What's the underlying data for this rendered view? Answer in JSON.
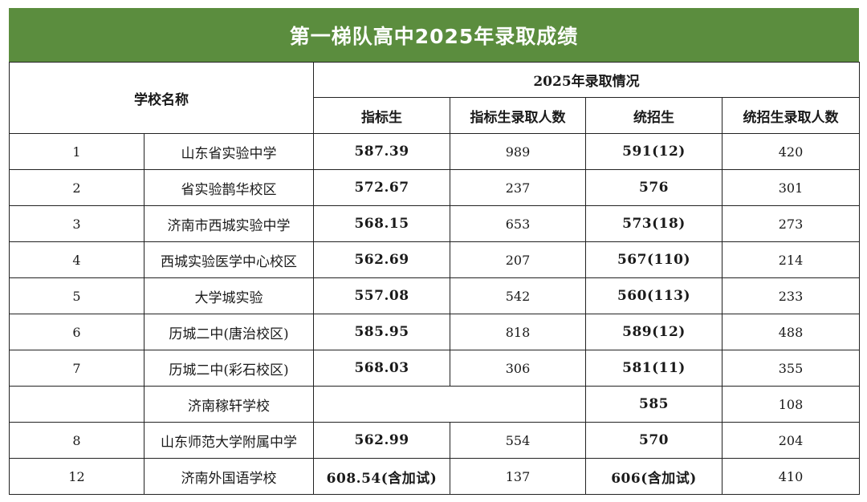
{
  "title": "第一梯队高中2025年录取成绩",
  "headers": {
    "school_name": "学校名称",
    "group": "2025年录取情况",
    "columns": [
      "指标生",
      "指标生录取人数",
      "统招生",
      "统招生录取人数"
    ]
  },
  "rows": [
    {
      "no": "1",
      "school": "山东省实验中学",
      "zb": "587.39",
      "zb_count": "989",
      "tz": "591(12)",
      "tz_count": "420"
    },
    {
      "no": "2",
      "school": "省实验鹊华校区",
      "zb": "572.67",
      "zb_count": "237",
      "tz": "576",
      "tz_count": "301"
    },
    {
      "no": "3",
      "school": "济南市西城实验中学",
      "zb": "568.15",
      "zb_count": "653",
      "tz": "573(18)",
      "tz_count": "273"
    },
    {
      "no": "4",
      "school": "西城实验医学中心校区",
      "zb": "562.69",
      "zb_count": "207",
      "tz": "567(110)",
      "tz_count": "214"
    },
    {
      "no": "5",
      "school": "大学城实验",
      "zb": "557.08",
      "zb_count": "542",
      "tz": "560(113)",
      "tz_count": "233"
    },
    {
      "no": "6",
      "school": "历城二中(唐治校区)",
      "zb": "585.95",
      "zb_count": "818",
      "tz": "589(12)",
      "tz_count": "488"
    },
    {
      "no": "7",
      "school": "历城二中(彩石校区)",
      "zb": "568.03",
      "zb_count": "306",
      "tz": "581(11)",
      "tz_count": "355"
    },
    {
      "no": "",
      "school": "济南稼轩学校",
      "zb": "",
      "zb_count": "",
      "tz": "585",
      "tz_count": "108"
    },
    {
      "no": "8",
      "school": "山东师范大学附属中学",
      "zb": "562.99",
      "zb_count": "554",
      "tz": "570",
      "tz_count": "204"
    },
    {
      "no": "12",
      "school": "济南外国语学校",
      "zb": "608.54(含加试)",
      "zb_count": "137",
      "tz": "606(含加试)",
      "tz_count": "410"
    }
  ]
}
